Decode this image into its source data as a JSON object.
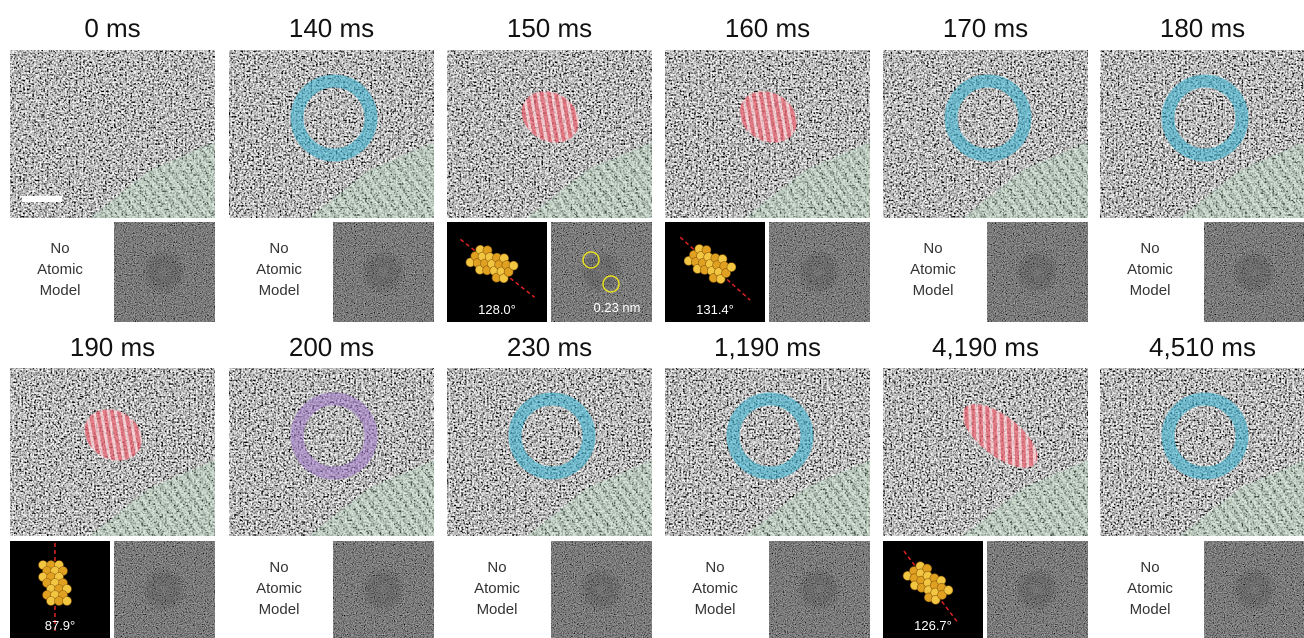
{
  "panels": [
    {
      "time": "0 ms",
      "model": {
        "text": [
          "No",
          "Atomic",
          "Model"
        ]
      }
    },
    {
      "time": "140 ms",
      "model": {
        "text": [
          "No",
          "Atomic",
          "Model"
        ]
      }
    },
    {
      "time": "150 ms",
      "model": {
        "angle": "128.0°"
      },
      "fft_label": "0.23 nm"
    },
    {
      "time": "160 ms",
      "model": {
        "angle": "131.4°"
      }
    },
    {
      "time": "170 ms",
      "model": {
        "text": [
          "No",
          "Atomic",
          "Model"
        ]
      }
    },
    {
      "time": "180 ms",
      "model": {
        "text": [
          "No",
          "Atomic",
          "Model"
        ]
      }
    },
    {
      "time": "190 ms",
      "model": {
        "angle": "87.9°"
      }
    },
    {
      "time": "200 ms",
      "model": {
        "text": [
          "No",
          "Atomic",
          "Model"
        ]
      }
    },
    {
      "time": "230 ms",
      "model": {
        "text": [
          "No",
          "Atomic",
          "Model"
        ]
      }
    },
    {
      "time": "1,190 ms",
      "model": {
        "text": [
          "No",
          "Atomic",
          "Model"
        ]
      }
    },
    {
      "time": "4,190 ms",
      "model": {
        "angle": "126.7°"
      }
    },
    {
      "time": "4,510 ms",
      "model": {
        "text": [
          "No",
          "Atomic",
          "Model"
        ]
      }
    }
  ]
}
